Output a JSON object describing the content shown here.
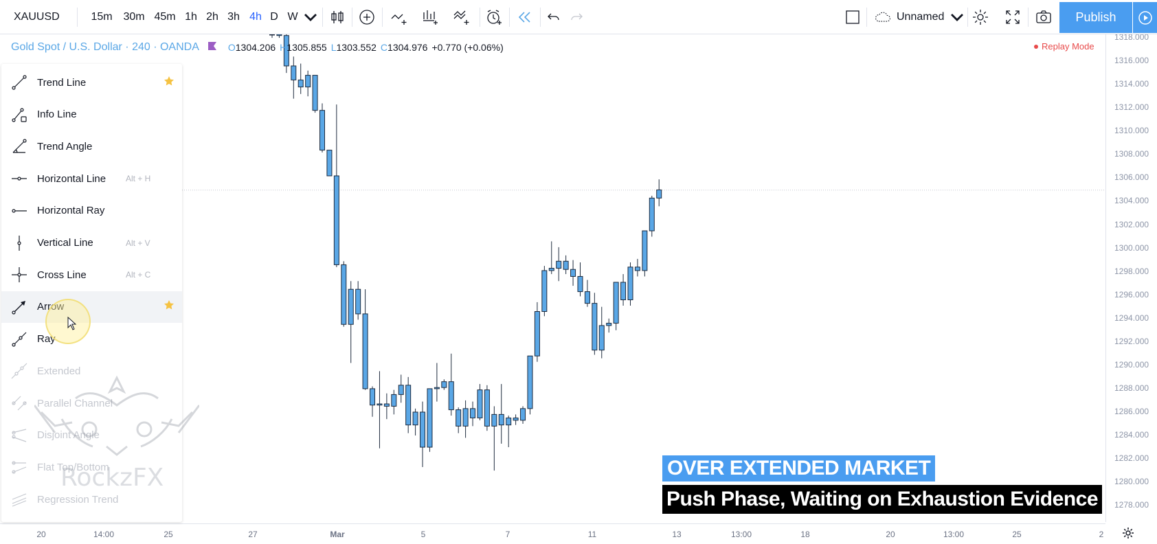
{
  "toolbar": {
    "symbol": "XAUUSD",
    "timeframes": [
      {
        "label": "15m",
        "active": false
      },
      {
        "label": "30m",
        "active": false
      },
      {
        "label": "45m",
        "active": false
      },
      {
        "label": "1h",
        "active": false
      },
      {
        "label": "2h",
        "active": false
      },
      {
        "label": "3h",
        "active": false
      },
      {
        "label": "4h",
        "active": true
      },
      {
        "label": "D",
        "active": false
      },
      {
        "label": "W",
        "active": false
      }
    ],
    "icons": [
      "chevron-down-icon",
      "candlestick-icon",
      "add-indicator-icon",
      "compare-icon",
      "indicators-icon",
      "templates-icon",
      "alert-icon",
      "replay-icon",
      "undo-icon",
      "redo-icon"
    ],
    "layout_name": "Unnamed",
    "publish_label": "Publish"
  },
  "legend": {
    "title": "Gold Spot / U.S. Dollar · 240 · OANDA",
    "open_key": "O",
    "open": "1304.206",
    "high_key": "H",
    "high": "1305.855",
    "low_key": "L",
    "low": "1303.552",
    "close_key": "C",
    "close": "1304.976",
    "change": "+0.770 (+0.06%)",
    "replay_mode": "Replay Mode"
  },
  "menu": {
    "items": [
      {
        "label": "Trend Line",
        "shortcut": "",
        "starred": true,
        "icon": "trend-line-icon",
        "dim": false
      },
      {
        "label": "Info Line",
        "shortcut": "",
        "starred": false,
        "icon": "info-line-icon",
        "dim": false
      },
      {
        "label": "Trend Angle",
        "shortcut": "",
        "starred": false,
        "icon": "trend-angle-icon",
        "dim": false
      },
      {
        "label": "Horizontal Line",
        "shortcut": "Alt + H",
        "starred": false,
        "icon": "horizontal-line-icon",
        "dim": false
      },
      {
        "label": "Horizontal Ray",
        "shortcut": "",
        "starred": false,
        "icon": "horizontal-ray-icon",
        "dim": false
      },
      {
        "label": "Vertical Line",
        "shortcut": "Alt + V",
        "starred": false,
        "icon": "vertical-line-icon",
        "dim": false
      },
      {
        "label": "Cross Line",
        "shortcut": "Alt + C",
        "starred": false,
        "icon": "cross-line-icon",
        "dim": false
      },
      {
        "label": "Arrow",
        "shortcut": "",
        "starred": true,
        "icon": "arrow-icon",
        "dim": false
      },
      {
        "label": "Ray",
        "shortcut": "",
        "starred": false,
        "icon": "ray-icon",
        "dim": false
      },
      {
        "label": "Extended",
        "shortcut": "",
        "starred": false,
        "icon": "extended-line-icon",
        "dim": true
      },
      {
        "label": "Parallel Channel",
        "shortcut": "",
        "starred": false,
        "icon": "parallel-channel-icon",
        "dim": true
      },
      {
        "label": "Disjoint Angle",
        "shortcut": "",
        "starred": false,
        "icon": "disjoint-angle-icon",
        "dim": true
      },
      {
        "label": "Flat Top/Bottom",
        "shortcut": "",
        "starred": false,
        "icon": "flat-top-bottom-icon",
        "dim": true
      },
      {
        "label": "Regression Trend",
        "shortcut": "",
        "starred": false,
        "icon": "regression-trend-icon",
        "dim": true
      }
    ]
  },
  "watermark": {
    "text": "RockzFX"
  },
  "captions": {
    "headline": "OVER EXTENDED MARKET",
    "subline": "Push Phase, Waiting on Exhaustion Evidence"
  },
  "chart_data": {
    "type": "candlestick",
    "symbol": "XAUUSD",
    "interval": "240",
    "price_axis_ticks": [
      "1318.000",
      "1316.000",
      "1314.000",
      "1312.000",
      "1310.000",
      "1308.000",
      "1306.000",
      "1304.000",
      "1302.000",
      "1300.000",
      "1298.000",
      "1296.000",
      "1294.000",
      "1292.000",
      "1290.000",
      "1288.000",
      "1286.000",
      "1284.000",
      "1282.000",
      "1280.000",
      "1278.000"
    ],
    "ylim": [
      1276.6,
      1318.3
    ],
    "time_axis_ticks": [
      "20",
      "14:00",
      "25",
      "27",
      "Mar",
      "5",
      "7",
      "11",
      "13",
      "13:00",
      "18",
      "20",
      "13:00",
      "25",
      "2"
    ],
    "last_price_line": 1304.98,
    "up_color": "#5aa7e6",
    "down_color": "#5aa7e6",
    "candles": [
      {
        "o": 1320.5,
        "h": 1321.5,
        "l": 1318.0,
        "c": 1318.6
      },
      {
        "o": 1318.6,
        "h": 1320.2,
        "l": 1318.0,
        "c": 1318.2
      },
      {
        "o": 1318.2,
        "h": 1318.8,
        "l": 1315.0,
        "c": 1315.6
      },
      {
        "o": 1315.6,
        "h": 1316.4,
        "l": 1312.8,
        "c": 1314.4
      },
      {
        "o": 1314.4,
        "h": 1315.8,
        "l": 1313.2,
        "c": 1313.8
      },
      {
        "o": 1313.8,
        "h": 1315.2,
        "l": 1313.0,
        "c": 1314.8
      },
      {
        "o": 1314.8,
        "h": 1314.8,
        "l": 1311.6,
        "c": 1311.8
      },
      {
        "o": 1311.8,
        "h": 1312.4,
        "l": 1308.2,
        "c": 1308.4
      },
      {
        "o": 1308.4,
        "h": 1308.4,
        "l": 1306.2,
        "c": 1306.2
      },
      {
        "o": 1306.2,
        "h": 1312.3,
        "l": 1298.4,
        "c": 1298.6
      },
      {
        "o": 1298.6,
        "h": 1298.9,
        "l": 1293.3,
        "c": 1293.5
      },
      {
        "o": 1293.5,
        "h": 1297.2,
        "l": 1290.2,
        "c": 1296.5
      },
      {
        "o": 1296.5,
        "h": 1297.2,
        "l": 1293.9,
        "c": 1294.4
      },
      {
        "o": 1294.4,
        "h": 1296.5,
        "l": 1287.9,
        "c": 1288.0
      },
      {
        "o": 1288.0,
        "h": 1288.2,
        "l": 1285.6,
        "c": 1286.6
      },
      {
        "o": 1286.6,
        "h": 1289.5,
        "l": 1282.9,
        "c": 1286.7
      },
      {
        "o": 1286.7,
        "h": 1287.6,
        "l": 1285.4,
        "c": 1286.5
      },
      {
        "o": 1286.5,
        "h": 1287.9,
        "l": 1285.8,
        "c": 1287.5
      },
      {
        "o": 1287.5,
        "h": 1289.2,
        "l": 1286.8,
        "c": 1288.3
      },
      {
        "o": 1288.3,
        "h": 1289.0,
        "l": 1284.2,
        "c": 1284.9
      },
      {
        "o": 1284.9,
        "h": 1286.3,
        "l": 1284.0,
        "c": 1286.0
      },
      {
        "o": 1286.0,
        "h": 1286.9,
        "l": 1281.3,
        "c": 1283.0
      },
      {
        "o": 1283.0,
        "h": 1288.0,
        "l": 1282.6,
        "c": 1288.0
      },
      {
        "o": 1288.0,
        "h": 1290.2,
        "l": 1286.9,
        "c": 1288.1
      },
      {
        "o": 1288.1,
        "h": 1288.8,
        "l": 1287.9,
        "c": 1288.6
      },
      {
        "o": 1288.6,
        "h": 1291.0,
        "l": 1285.7,
        "c": 1286.2
      },
      {
        "o": 1286.2,
        "h": 1286.4,
        "l": 1284.2,
        "c": 1284.8
      },
      {
        "o": 1284.8,
        "h": 1287.0,
        "l": 1283.8,
        "c": 1286.3
      },
      {
        "o": 1286.3,
        "h": 1286.9,
        "l": 1284.8,
        "c": 1285.5
      },
      {
        "o": 1285.5,
        "h": 1288.4,
        "l": 1285.3,
        "c": 1287.9
      },
      {
        "o": 1287.9,
        "h": 1288.3,
        "l": 1284.4,
        "c": 1284.8
      },
      {
        "o": 1284.8,
        "h": 1286.5,
        "l": 1281.0,
        "c": 1285.8
      },
      {
        "o": 1285.8,
        "h": 1288.4,
        "l": 1283.3,
        "c": 1284.9
      },
      {
        "o": 1284.9,
        "h": 1285.7,
        "l": 1283.0,
        "c": 1285.5
      },
      {
        "o": 1285.5,
        "h": 1285.8,
        "l": 1284.9,
        "c": 1285.3
      },
      {
        "o": 1285.3,
        "h": 1286.5,
        "l": 1285.0,
        "c": 1286.3
      },
      {
        "o": 1286.3,
        "h": 1290.8,
        "l": 1285.8,
        "c": 1290.8
      },
      {
        "o": 1290.8,
        "h": 1295.4,
        "l": 1290.3,
        "c": 1294.6
      },
      {
        "o": 1294.6,
        "h": 1298.5,
        "l": 1294.2,
        "c": 1298.1
      },
      {
        "o": 1298.1,
        "h": 1300.6,
        "l": 1297.8,
        "c": 1298.3
      },
      {
        "o": 1298.3,
        "h": 1300.1,
        "l": 1297.2,
        "c": 1298.9
      },
      {
        "o": 1298.9,
        "h": 1299.4,
        "l": 1297.8,
        "c": 1298.2
      },
      {
        "o": 1298.2,
        "h": 1299.0,
        "l": 1296.8,
        "c": 1297.6
      },
      {
        "o": 1297.6,
        "h": 1298.8,
        "l": 1295.9,
        "c": 1296.3
      },
      {
        "o": 1296.3,
        "h": 1297.3,
        "l": 1295.0,
        "c": 1295.3
      },
      {
        "o": 1295.3,
        "h": 1296.2,
        "l": 1290.9,
        "c": 1291.3
      },
      {
        "o": 1291.3,
        "h": 1295.0,
        "l": 1290.6,
        "c": 1293.4
      },
      {
        "o": 1293.4,
        "h": 1294.0,
        "l": 1292.8,
        "c": 1293.6
      },
      {
        "o": 1293.6,
        "h": 1297.1,
        "l": 1293.0,
        "c": 1297.1
      },
      {
        "o": 1297.1,
        "h": 1297.8,
        "l": 1295.1,
        "c": 1295.6
      },
      {
        "o": 1295.6,
        "h": 1298.8,
        "l": 1295.1,
        "c": 1298.4
      },
      {
        "o": 1298.4,
        "h": 1299.1,
        "l": 1297.6,
        "c": 1298.1
      },
      {
        "o": 1298.1,
        "h": 1301.5,
        "l": 1297.6,
        "c": 1301.5
      },
      {
        "o": 1301.5,
        "h": 1304.5,
        "l": 1301.0,
        "c": 1304.3
      },
      {
        "o": 1304.3,
        "h": 1305.9,
        "l": 1303.6,
        "c": 1305.0
      }
    ]
  }
}
